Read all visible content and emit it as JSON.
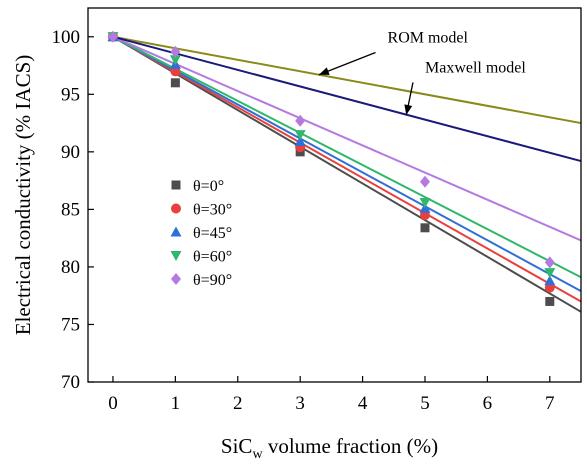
{
  "chart_data": {
    "type": "scatter",
    "xlabel_main": "SiC",
    "xlabel_sub": "w",
    "xlabel_rest": " volume fraction (%)",
    "ylabel": "Electrical conductivity (% IACS)",
    "xlim": [
      -0.4,
      7.5
    ],
    "ylim": [
      70,
      102.5
    ],
    "xticks": [
      0,
      1,
      2,
      3,
      4,
      5,
      6,
      7
    ],
    "yticks": [
      70,
      75,
      80,
      85,
      90,
      95,
      100
    ],
    "grid": false,
    "legend_position": "left-center",
    "series": [
      {
        "name": "θ=0°",
        "marker": "square",
        "color": "#4d4d4d",
        "x": [
          0,
          1,
          3,
          5,
          7
        ],
        "y": [
          100,
          96.0,
          90.0,
          83.4,
          77.0
        ],
        "fit_end": 76.1
      },
      {
        "name": "θ=30°",
        "marker": "circle",
        "color": "#e8413c",
        "x": [
          0,
          1,
          3,
          5,
          7
        ],
        "y": [
          100,
          97.0,
          90.4,
          84.5,
          78.2
        ],
        "fit_end": 77.0
      },
      {
        "name": "θ=45°",
        "marker": "triangle-up",
        "color": "#2f6fd6",
        "x": [
          0,
          1,
          3,
          5,
          7
        ],
        "y": [
          100,
          97.6,
          90.9,
          85.1,
          78.8
        ],
        "fit_end": 77.9
      },
      {
        "name": "θ=60°",
        "marker": "triangle-down",
        "color": "#2fb86a",
        "x": [
          0,
          1,
          3,
          5,
          7
        ],
        "y": [
          100,
          98.0,
          91.5,
          85.6,
          79.5
        ],
        "fit_end": 79.1
      },
      {
        "name": "θ=90°",
        "marker": "diamond",
        "color": "#b57ae0",
        "x": [
          0,
          1,
          3,
          5,
          7
        ],
        "y": [
          100,
          98.7,
          92.7,
          87.4,
          80.4
        ],
        "fit_end": 82.3
      }
    ],
    "model_lines": [
      {
        "name": "ROM model",
        "color": "#8a8a1a",
        "x": [
          0,
          7.5
        ],
        "y": [
          100,
          92.5
        ]
      },
      {
        "name": "Maxwell model",
        "color": "#1a1a7a",
        "x": [
          0,
          7.5
        ],
        "y": [
          100,
          89.2
        ]
      }
    ],
    "annotations": [
      {
        "text": "ROM model",
        "target_x": 3.3,
        "target_y": 96.7,
        "label_x": 4.4,
        "label_y": 99.5
      },
      {
        "text": "Maxwell model",
        "target_x": 4.7,
        "target_y": 93.2,
        "label_x": 5.0,
        "label_y": 96.9
      }
    ]
  }
}
